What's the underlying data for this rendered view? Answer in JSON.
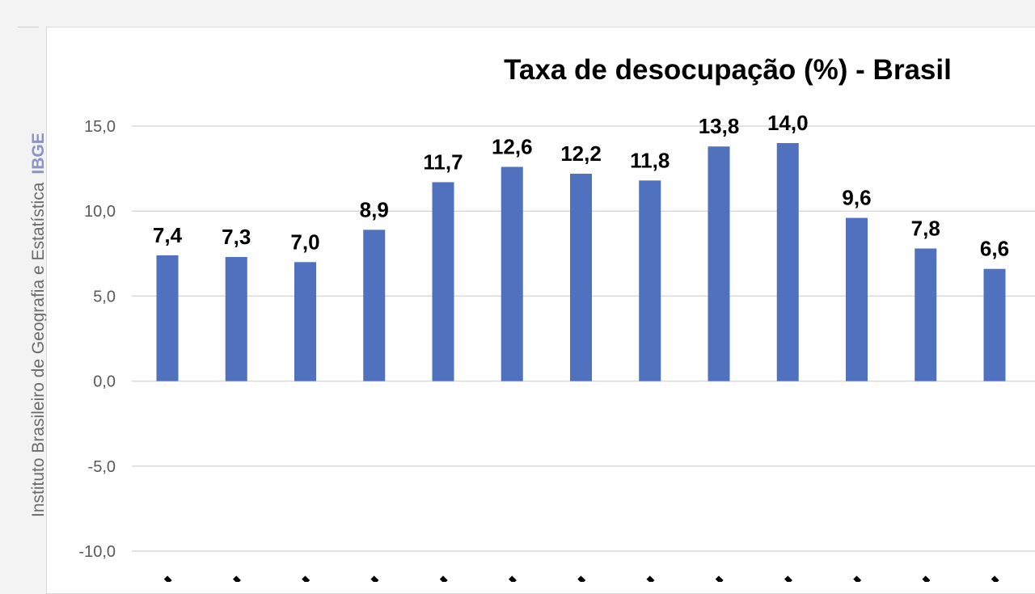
{
  "side_panel": {
    "source_text": "Instituto Brasileiro de Geografia e Estatística",
    "brand": "IBGE"
  },
  "chart_data": {
    "type": "bar",
    "title": "Taxa de desocupação (%) - Brasil",
    "xlabel": "",
    "ylabel": "",
    "ylim": [
      -10,
      15
    ],
    "yticks": [
      15,
      10,
      5,
      0,
      -5,
      -10
    ],
    "ytick_labels": [
      "15,0",
      "10,0",
      "5,0",
      "0,0",
      "-5,0",
      "-10,0"
    ],
    "grid": true,
    "series": [
      {
        "color": "#4f71be",
        "values": [
          7.4,
          7.3,
          7.0,
          8.9,
          11.7,
          12.6,
          12.2,
          11.8,
          13.8,
          14.0,
          9.6,
          7.8,
          6.6
        ],
        "data_labels": [
          "7,4",
          "7,3",
          "7,0",
          "8,9",
          "11,7",
          "12,6",
          "12,2",
          "11,8",
          "13,8",
          "14,0",
          "9,6",
          "7,8",
          "6,6"
        ]
      }
    ]
  }
}
